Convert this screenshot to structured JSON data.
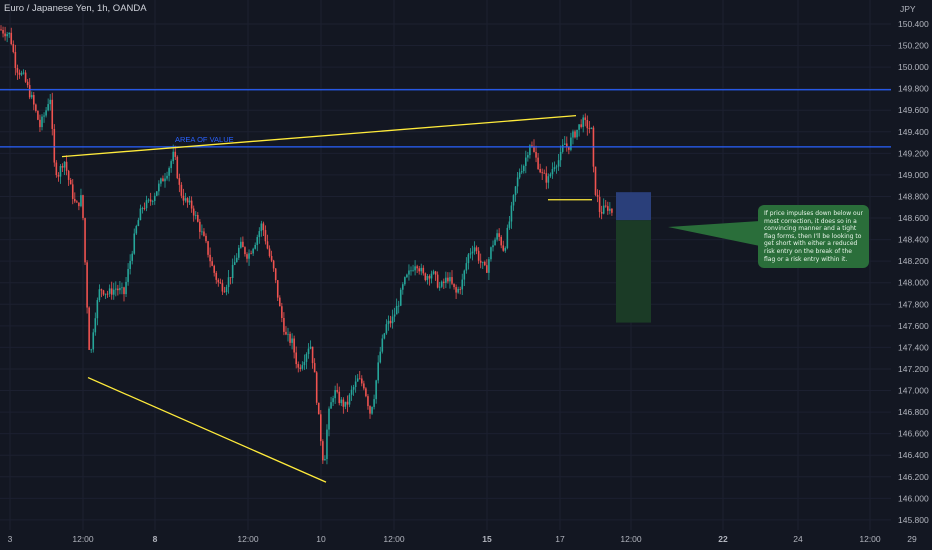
{
  "header": {
    "title": "Euro / Japanese Yen, 1h, OANDA",
    "currency": "JPY"
  },
  "chart_data": {
    "type": "candlestick",
    "title": "Euro / Japanese Yen, 1h, OANDA",
    "ylabel": "JPY",
    "ylim": [
      145.8,
      150.5
    ],
    "y_ticks": [
      "145.800",
      "146.000",
      "146.200",
      "146.400",
      "146.600",
      "146.800",
      "147.000",
      "147.200",
      "147.400",
      "147.600",
      "147.800",
      "148.000",
      "148.200",
      "148.400",
      "148.600",
      "148.800",
      "149.000",
      "149.200",
      "149.400",
      "149.600",
      "149.800",
      "150.000",
      "150.200",
      "150.400"
    ],
    "x_ticks": [
      "3",
      "12:00",
      "8",
      "12:00",
      "10",
      "12:00",
      "15",
      "17",
      "12:00",
      "22",
      "24",
      "12:00",
      "29"
    ],
    "price_path": [
      [
        0,
        150.35
      ],
      [
        10,
        150.3
      ],
      [
        16,
        150.0
      ],
      [
        24,
        149.9
      ],
      [
        32,
        149.7
      ],
      [
        40,
        149.45
      ],
      [
        46,
        149.6
      ],
      [
        50,
        149.75
      ],
      [
        54,
        149.1
      ],
      [
        58,
        149.0
      ],
      [
        64,
        149.15
      ],
      [
        70,
        148.9
      ],
      [
        76,
        148.7
      ],
      [
        82,
        148.8
      ],
      [
        86,
        148.0
      ],
      [
        90,
        147.25
      ],
      [
        94,
        147.65
      ],
      [
        100,
        147.95
      ],
      [
        108,
        147.9
      ],
      [
        116,
        147.95
      ],
      [
        124,
        147.9
      ],
      [
        130,
        148.2
      ],
      [
        136,
        148.5
      ],
      [
        142,
        148.7
      ],
      [
        150,
        148.75
      ],
      [
        156,
        148.85
      ],
      [
        162,
        148.95
      ],
      [
        168,
        149.05
      ],
      [
        174,
        149.2
      ],
      [
        180,
        148.85
      ],
      [
        186,
        148.75
      ],
      [
        192,
        148.7
      ],
      [
        200,
        148.5
      ],
      [
        206,
        148.35
      ],
      [
        212,
        148.15
      ],
      [
        218,
        148.0
      ],
      [
        224,
        147.95
      ],
      [
        232,
        148.1
      ],
      [
        240,
        148.35
      ],
      [
        248,
        148.25
      ],
      [
        256,
        148.4
      ],
      [
        262,
        148.55
      ],
      [
        268,
        148.3
      ],
      [
        274,
        148.1
      ],
      [
        280,
        147.75
      ],
      [
        286,
        147.5
      ],
      [
        292,
        147.45
      ],
      [
        298,
        147.2
      ],
      [
        304,
        147.3
      ],
      [
        310,
        147.45
      ],
      [
        314,
        147.2
      ],
      [
        318,
        146.8
      ],
      [
        322,
        146.45
      ],
      [
        324,
        146.3
      ],
      [
        328,
        146.75
      ],
      [
        334,
        147.0
      ],
      [
        340,
        146.9
      ],
      [
        346,
        146.85
      ],
      [
        352,
        147.0
      ],
      [
        358,
        147.1
      ],
      [
        364,
        147.05
      ],
      [
        370,
        146.8
      ],
      [
        374,
        146.95
      ],
      [
        380,
        147.35
      ],
      [
        386,
        147.6
      ],
      [
        392,
        147.65
      ],
      [
        398,
        147.8
      ],
      [
        404,
        148.0
      ],
      [
        410,
        148.1
      ],
      [
        416,
        148.2
      ],
      [
        424,
        148.05
      ],
      [
        432,
        148.1
      ],
      [
        440,
        147.95
      ],
      [
        448,
        148.05
      ],
      [
        456,
        147.9
      ],
      [
        462,
        148.0
      ],
      [
        468,
        148.25
      ],
      [
        474,
        148.35
      ],
      [
        480,
        148.2
      ],
      [
        486,
        148.1
      ],
      [
        492,
        148.35
      ],
      [
        498,
        148.45
      ],
      [
        504,
        148.3
      ],
      [
        510,
        148.6
      ],
      [
        516,
        148.9
      ],
      [
        520,
        149.05
      ],
      [
        524,
        149.1
      ],
      [
        530,
        149.3
      ],
      [
        536,
        149.15
      ],
      [
        542,
        149.0
      ],
      [
        548,
        148.95
      ],
      [
        554,
        149.1
      ],
      [
        560,
        149.15
      ],
      [
        564,
        149.3
      ],
      [
        568,
        149.25
      ],
      [
        572,
        149.35
      ],
      [
        576,
        149.4
      ],
      [
        582,
        149.5
      ],
      [
        588,
        149.45
      ],
      [
        592,
        149.4
      ],
      [
        594,
        148.9
      ],
      [
        597,
        148.8
      ],
      [
        600,
        148.65
      ],
      [
        604,
        148.68
      ],
      [
        608,
        148.7
      ],
      [
        612,
        148.66
      ]
    ],
    "levels": [
      {
        "name": "upper-resistance",
        "value": 149.79,
        "color": "#2962ff"
      },
      {
        "name": "area-of-value",
        "value": 149.26,
        "color": "#2962ff",
        "label": "AREA OF VALUE"
      }
    ],
    "trendlines": [
      {
        "name": "upper-wedge-line",
        "from": [
          62,
          149.17
        ],
        "to": [
          576,
          149.55
        ],
        "color": "#ffeb3b"
      },
      {
        "name": "lower-wedge-line",
        "from": [
          88,
          147.12
        ],
        "to": [
          326,
          146.15
        ],
        "color": "#ffeb3b"
      },
      {
        "name": "flag-base-line",
        "from": [
          548,
          148.77
        ],
        "to": [
          592,
          148.77
        ],
        "color": "#ffeb3b"
      }
    ],
    "position": {
      "type": "short",
      "entry": 148.58,
      "stop": 148.84,
      "target": 147.63,
      "stop_color": "#2a3f7a",
      "target_color": "#1b3b26"
    },
    "up_color": "#26a69a",
    "down_color": "#ef5350"
  },
  "annotation": {
    "note": "If price impulses down below our most correction, it does so in a convincing manner and a tight flag forms, then I'll be looking to get short with either a reduced risk entry on the break of the flag or a risk entry within it."
  }
}
